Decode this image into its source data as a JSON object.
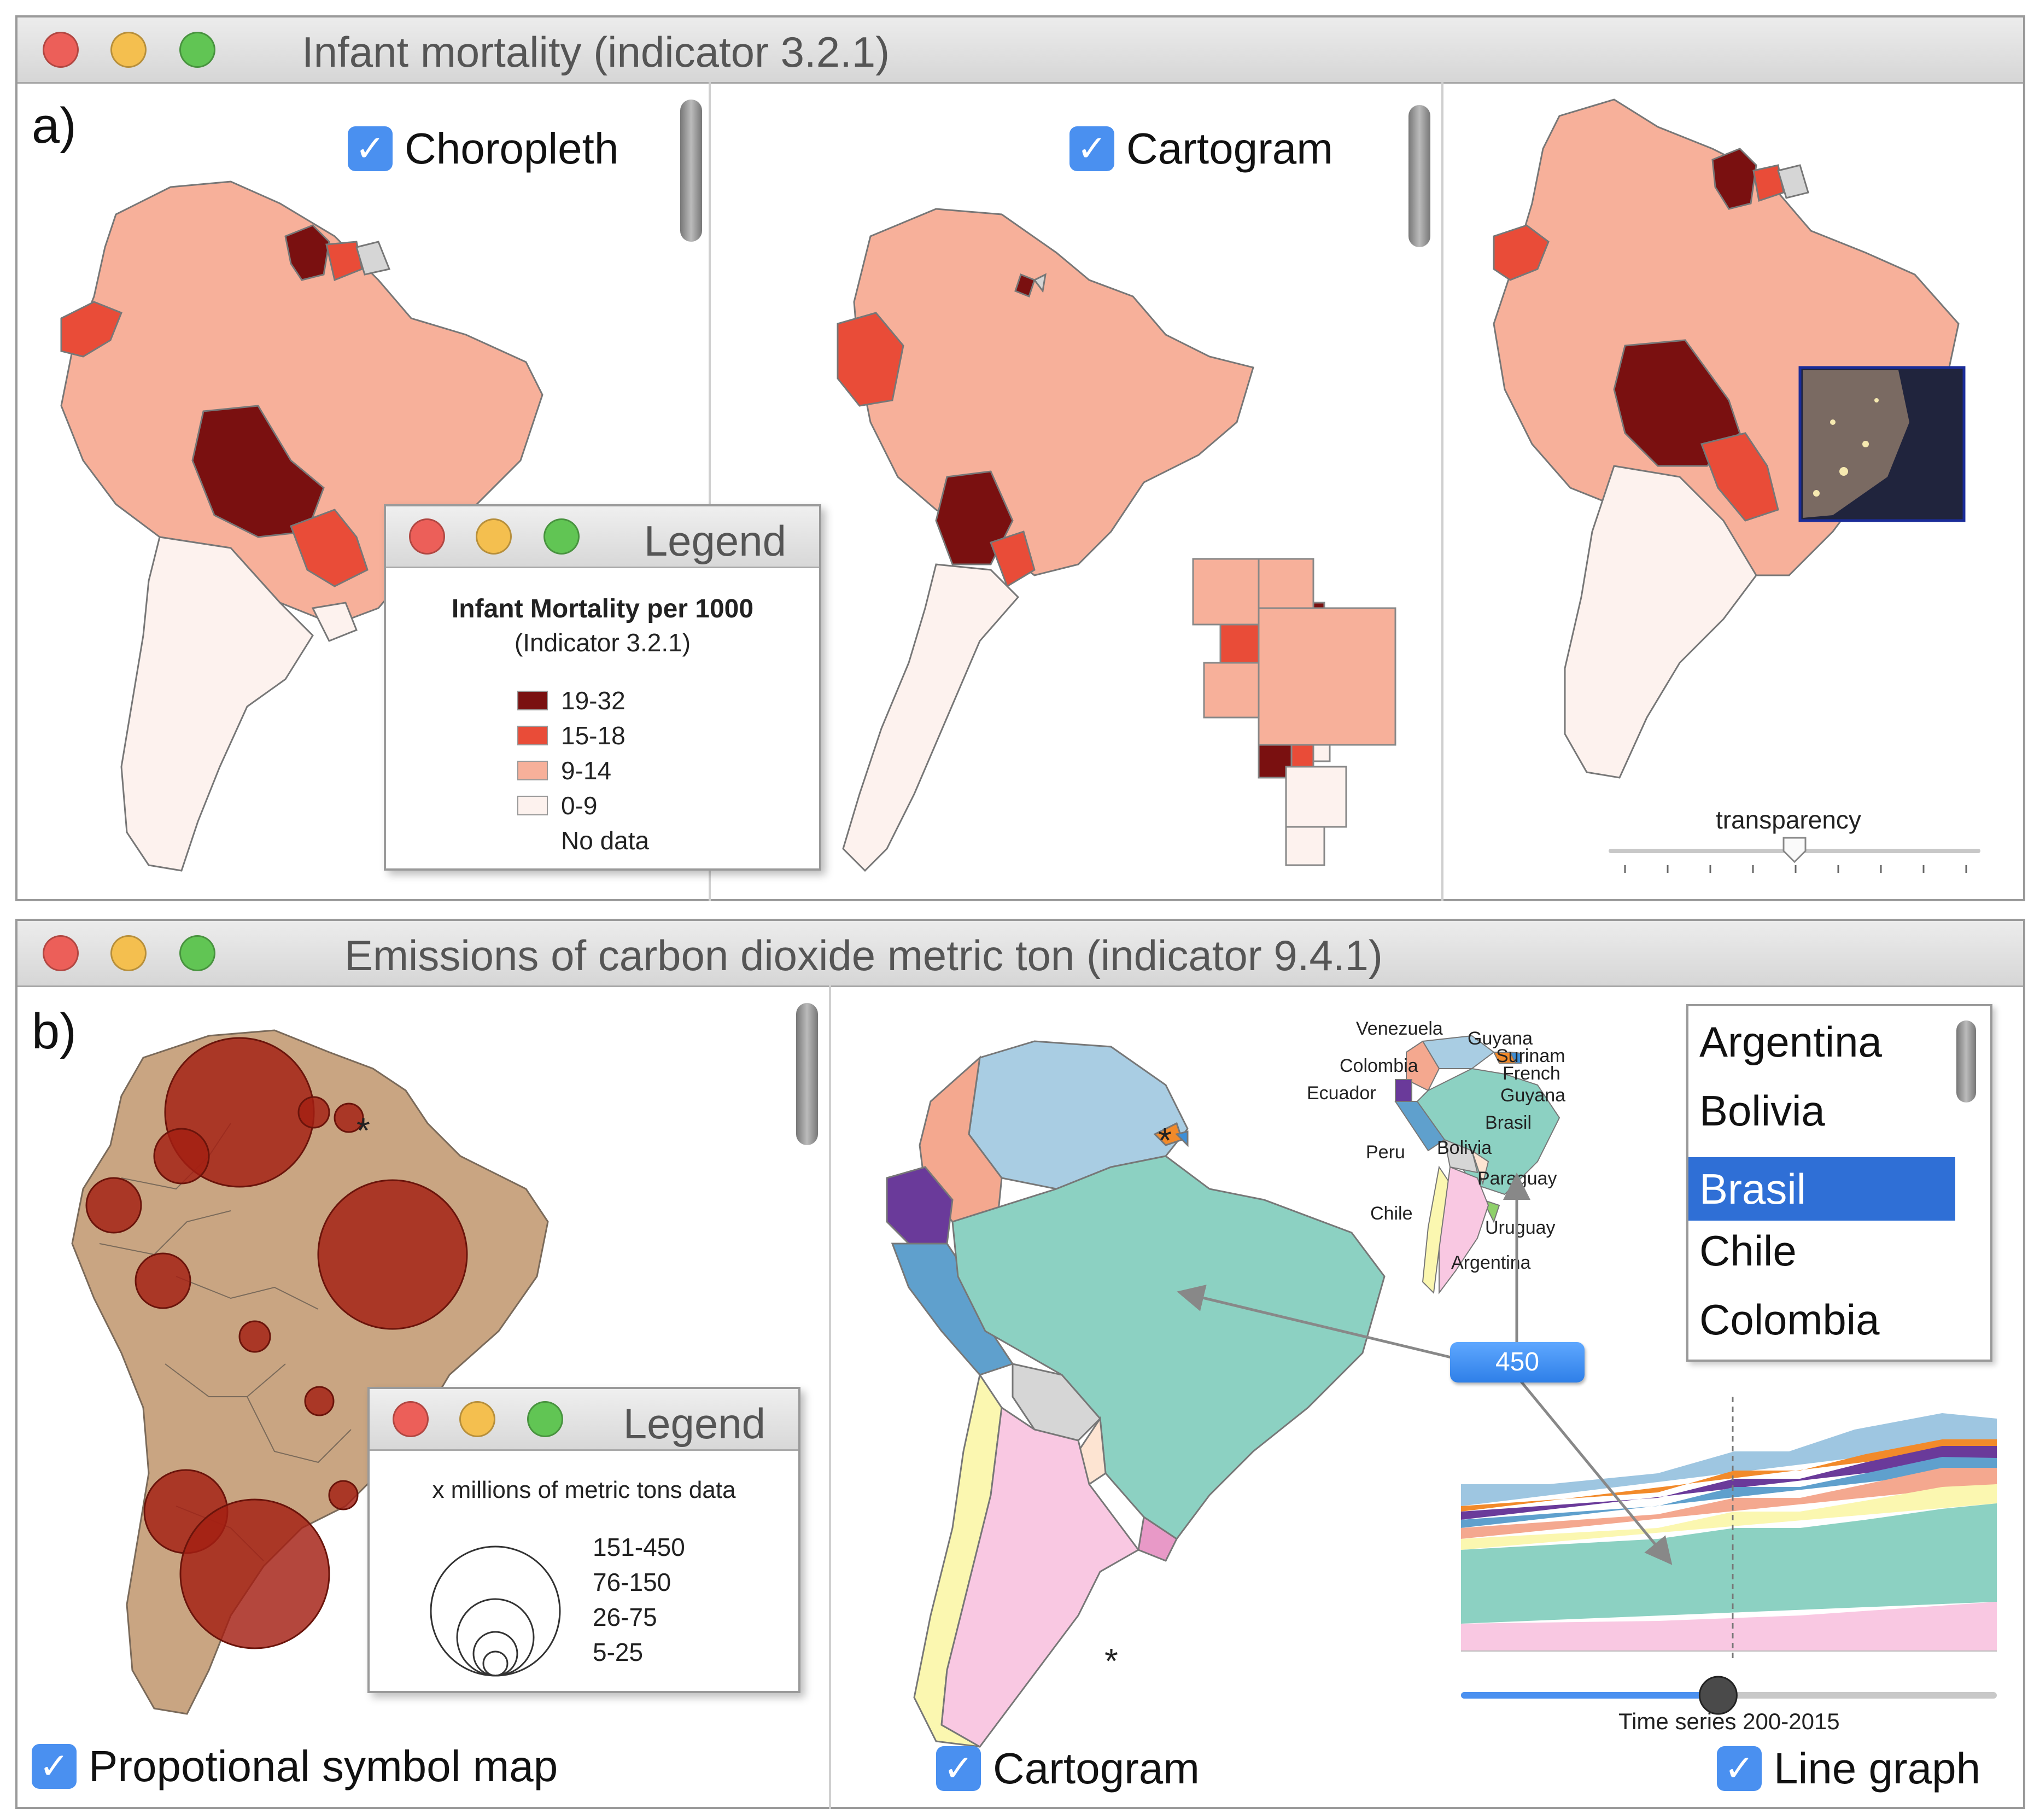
{
  "window_a": {
    "title": "Infant mortality (indicator 3.2.1)",
    "panel_label": "a)",
    "choropleth_label": "Choropleth",
    "cartogram_label": "Cartogram",
    "transparency_label": "transparency",
    "transparency_value": 0.5,
    "legend": {
      "title": "Legend",
      "heading": "Infant Mortality per 1000",
      "subheading": "(Indicator 3.2.1)",
      "items": [
        {
          "label": "19-32",
          "color": "#7a1010"
        },
        {
          "label": "15-18",
          "color": "#e94c38"
        },
        {
          "label": "9-14",
          "color": "#f7b09a"
        },
        {
          "label": "0-9",
          "color": "#fdf2ee"
        }
      ],
      "nodata_label": "No data"
    }
  },
  "window_b": {
    "title": "Emissions of carbon dioxide metric ton (indicator 9.4.1)",
    "panel_label": "b)",
    "symbol_map_label": "Propotional symbol map",
    "cartogram_label": "Cartogram",
    "linegraph_label": "Line graph",
    "asterisk": "*",
    "tooltip_value": "450",
    "time_series_label": "Time series 200-2015",
    "time_slider_value": 0.48,
    "legend": {
      "title": "Legend",
      "heading": "x millions of metric tons data",
      "items": [
        "151-450",
        "76-150",
        "26-75",
        "5-25"
      ]
    },
    "country_list": {
      "items": [
        "Argentina",
        "Bolivia",
        "Brasil",
        "Chile",
        "Colombia"
      ],
      "selected": "Brasil"
    },
    "mini_map_labels": {
      "venezuela": "Venezuela",
      "guyana": "Guyana",
      "surinam": "Surinam",
      "french": "French",
      "guyana2": "Guyana",
      "colombia": "Colombia",
      "ecuador": "Ecuador",
      "brasil": "Brasil",
      "peru": "Peru",
      "bolivia": "Bolivia",
      "paraguay": "Paraguay",
      "chile": "Chile",
      "uruguay": "Uruguay",
      "argentina": "Argentina"
    }
  },
  "colors": {
    "dark_red": "#7a1010",
    "red": "#e94c38",
    "salmon": "#f7b09a",
    "pale": "#fdf2ee",
    "tan": "#c9a582",
    "bubble": "#a31f12",
    "checkbox": "#4a90f0",
    "selection": "#2f6fd6"
  }
}
